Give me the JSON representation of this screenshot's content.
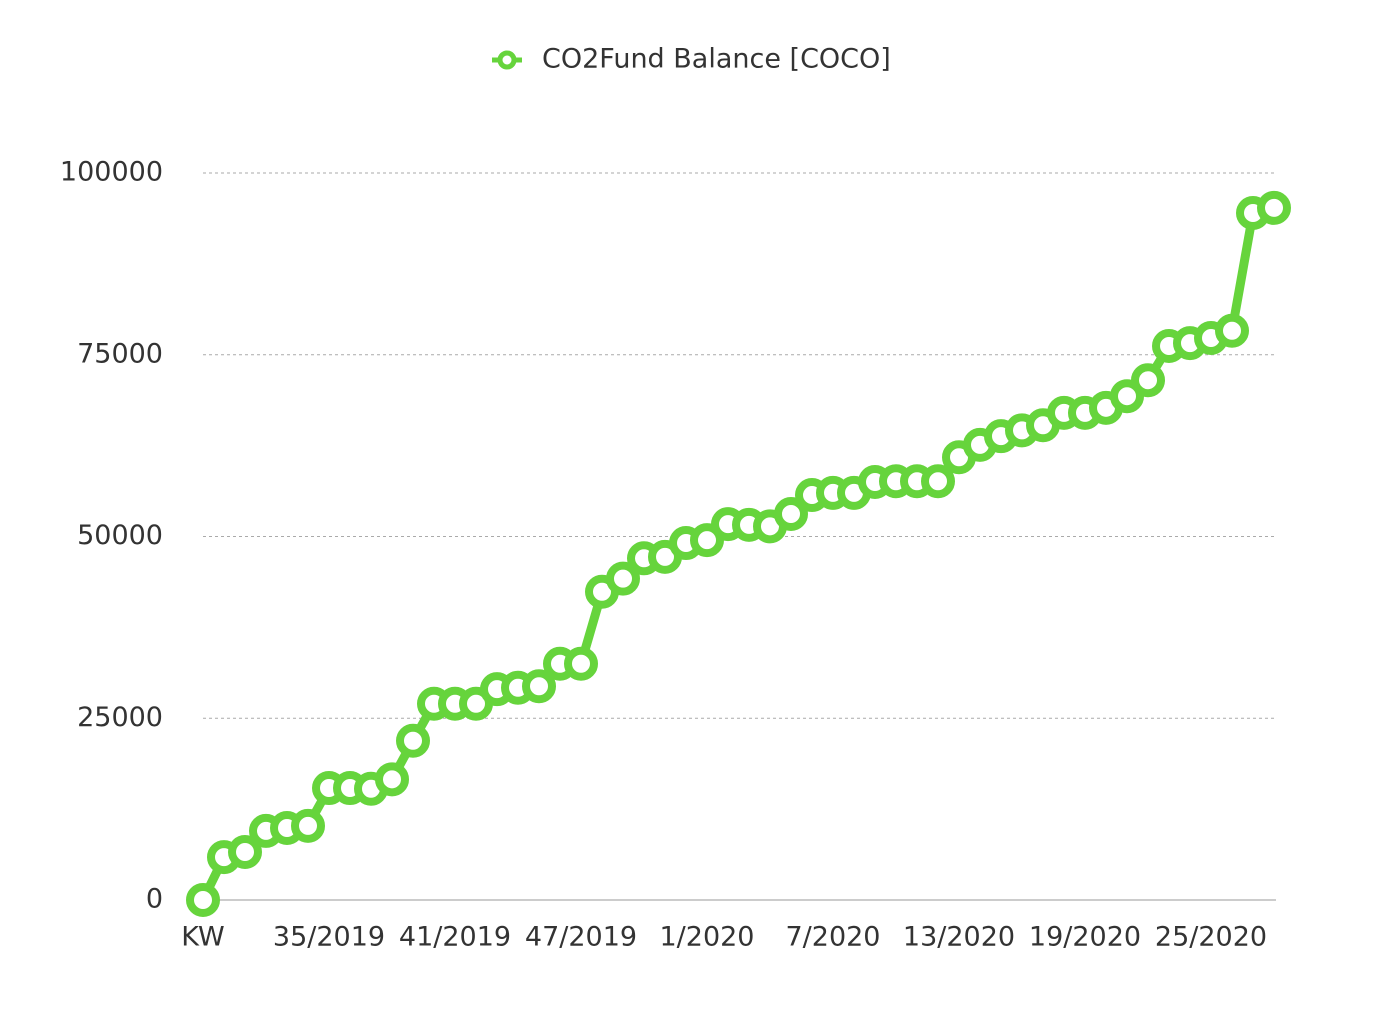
{
  "chart_data": {
    "type": "line",
    "categories": [
      "KW",
      null,
      null,
      null,
      null,
      null,
      "35/2019",
      null,
      null,
      null,
      null,
      null,
      "41/2019",
      null,
      null,
      null,
      null,
      null,
      "47/2019",
      null,
      null,
      null,
      null,
      null,
      "1/2020",
      null,
      null,
      null,
      null,
      null,
      "7/2020",
      null,
      null,
      null,
      null,
      null,
      "13/2020",
      null,
      null,
      null,
      null,
      null,
      "19/2020",
      null,
      null,
      null,
      null,
      null,
      "25/2020",
      null,
      null,
      null
    ],
    "series": [
      {
        "name": "CO2Fund Balance [COCO]",
        "color": "#66d43c",
        "values": [
          0,
          5900,
          6600,
          9500,
          9900,
          10200,
          15400,
          15400,
          15300,
          16600,
          21900,
          27000,
          27000,
          27000,
          29000,
          29200,
          29400,
          32500,
          32500,
          42400,
          44200,
          47000,
          47200,
          49100,
          49500,
          51700,
          51600,
          51400,
          53100,
          55700,
          56000,
          56000,
          57500,
          57600,
          57600,
          57600,
          60900,
          62600,
          63800,
          64600,
          65300,
          67000,
          67000,
          67700,
          69300,
          71500,
          76200,
          76600,
          77300,
          78300,
          94500,
          95200
        ]
      }
    ],
    "ylim": [
      0,
      100000
    ],
    "yticks": [
      0,
      25000,
      50000,
      75000,
      100000
    ],
    "grid": true,
    "legend": "top"
  }
}
